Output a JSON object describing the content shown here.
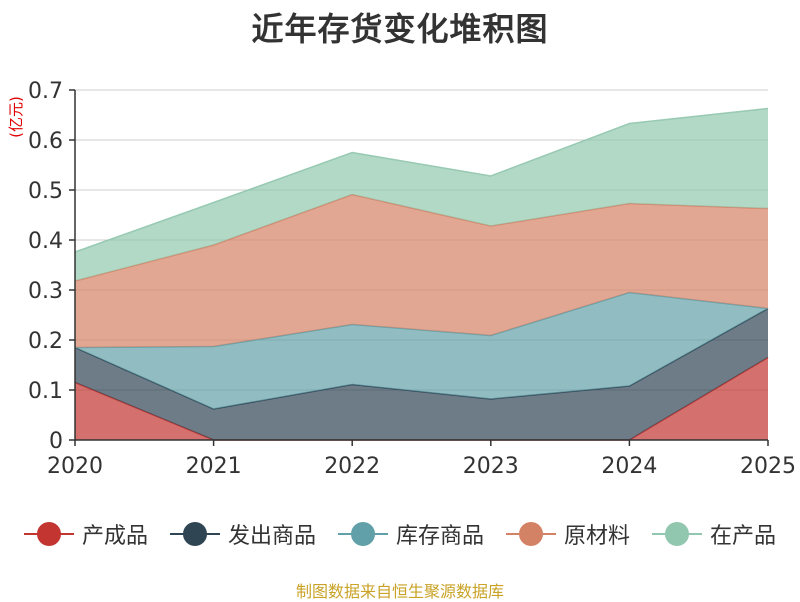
{
  "chart_data": {
    "type": "area",
    "stacked": true,
    "title": "近年存货变化堆积图",
    "ylabel": "(亿元)",
    "xlabel": "",
    "categories": [
      "2020",
      "2021",
      "2022",
      "2023",
      "2024",
      "2025"
    ],
    "ylim": [
      0,
      0.7
    ],
    "yticks": [
      "0",
      "0.1",
      "0.2",
      "0.3",
      "0.4",
      "0.5",
      "0.6",
      "0.7"
    ],
    "ytick_values": [
      0,
      0.1,
      0.2,
      0.3,
      0.4,
      0.5,
      0.6,
      0.7
    ],
    "grid": true,
    "legend_position": "bottom",
    "series": [
      {
        "name": "产成品",
        "color": "#c23531",
        "values": [
          0.115,
          0.0,
          0.0,
          0.0,
          0.0,
          0.165
        ]
      },
      {
        "name": "发出商品",
        "color": "#2f4554",
        "values": [
          0.07,
          0.062,
          0.111,
          0.082,
          0.108,
          0.098
        ]
      },
      {
        "name": "库存商品",
        "color": "#61a0a8",
        "values": [
          0.0,
          0.125,
          0.12,
          0.127,
          0.187,
          0.0
        ]
      },
      {
        "name": "原材料",
        "color": "#d48265",
        "values": [
          0.133,
          0.203,
          0.26,
          0.219,
          0.178,
          0.2
        ]
      },
      {
        "name": "在产品",
        "color": "#91c7ae",
        "values": [
          0.058,
          0.085,
          0.084,
          0.1,
          0.16,
          0.2
        ]
      }
    ]
  },
  "footer": {
    "source": "制图数据来自恒生聚源数据库"
  },
  "colors": {
    "axis": "#333333",
    "grid": "#cccccc",
    "ylabel": "#e00000",
    "source": "#c9a227"
  }
}
